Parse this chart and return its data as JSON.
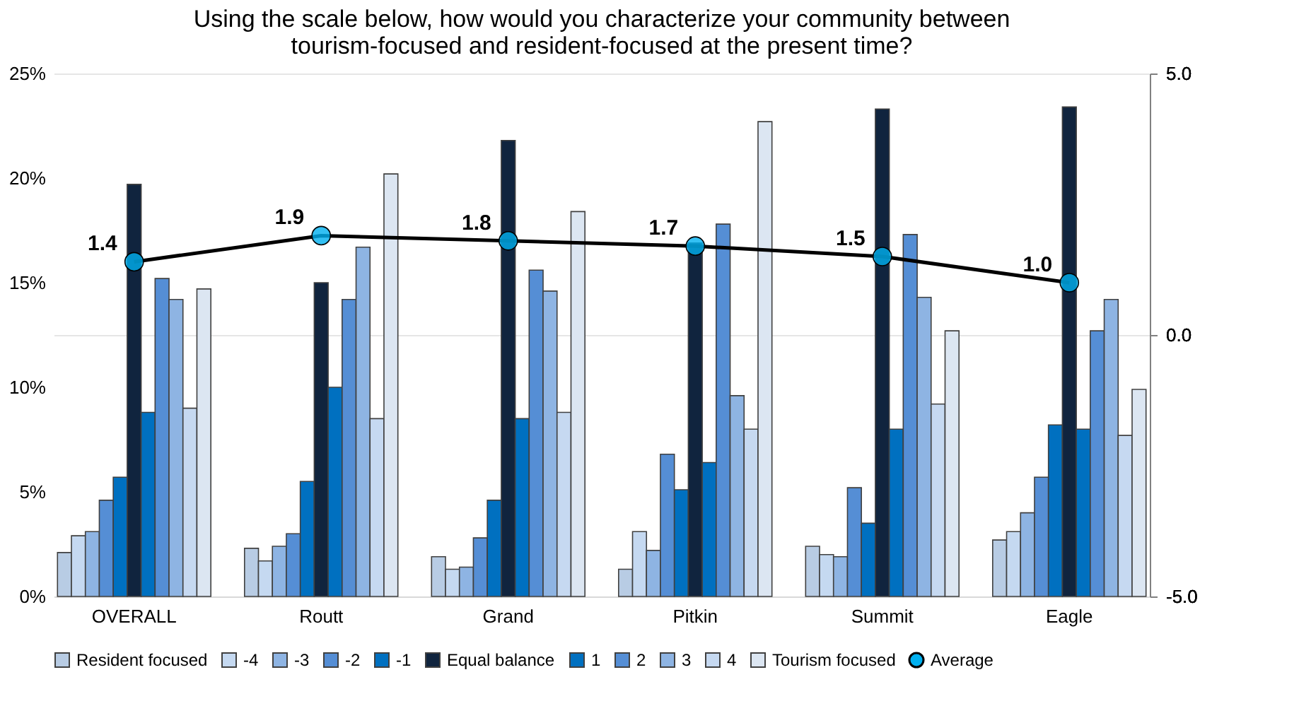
{
  "chart_data": {
    "type": "bar",
    "title": "Using the scale below, how would you characterize your community between\ntourism-focused and resident-focused at the present time?",
    "categories": [
      "OVERALL",
      "Routt",
      "Grand",
      "Pitkin",
      "Summit",
      "Eagle"
    ],
    "series": [
      {
        "name": "Resident focused",
        "color": "#b8cce4",
        "values": [
          2.1,
          2.3,
          1.9,
          1.3,
          2.4,
          2.7
        ]
      },
      {
        "name": "-4",
        "color": "#c5d9f1",
        "values": [
          2.9,
          1.7,
          1.3,
          3.1,
          2.0,
          3.1
        ]
      },
      {
        "name": "-3",
        "color": "#8eb4e3",
        "values": [
          3.1,
          2.4,
          1.4,
          2.2,
          1.9,
          4.0
        ]
      },
      {
        "name": "-2",
        "color": "#558ed5",
        "values": [
          4.6,
          3.0,
          2.8,
          6.8,
          5.2,
          5.7
        ]
      },
      {
        "name": "-1",
        "color": "#0070c0",
        "values": [
          5.7,
          5.5,
          4.6,
          5.1,
          3.5,
          8.2
        ]
      },
      {
        "name": "Equal balance",
        "color": "#10243e",
        "values": [
          19.7,
          15.0,
          21.8,
          16.9,
          23.3,
          23.4
        ]
      },
      {
        "name": "1",
        "color": "#0070c0",
        "values": [
          8.8,
          10.0,
          8.5,
          6.4,
          8.0,
          8.0
        ]
      },
      {
        "name": "2",
        "color": "#558ed5",
        "values": [
          15.2,
          14.2,
          15.6,
          17.8,
          17.3,
          12.7
        ]
      },
      {
        "name": "3",
        "color": "#8eb4e3",
        "values": [
          14.2,
          16.7,
          14.6,
          9.6,
          14.3,
          14.2
        ]
      },
      {
        "name": "4",
        "color": "#c6d9f1",
        "values": [
          9.0,
          8.5,
          8.8,
          8.0,
          9.2,
          7.7
        ]
      },
      {
        "name": "Tourism focused",
        "color": "#dce6f2",
        "values": [
          14.7,
          20.2,
          18.4,
          22.7,
          12.7,
          9.9
        ]
      },
      {
        "name": "Average",
        "type": "line",
        "axis": "y2",
        "color": "#000000",
        "marker": "circle",
        "values": [
          1.4,
          1.9,
          1.8,
          1.7,
          1.5,
          1.0
        ],
        "value_labels": [
          "1.4",
          "1.9",
          "1.8",
          "1.7",
          "1.5",
          "1.0"
        ]
      }
    ],
    "ylim": [
      0,
      25
    ],
    "yticks": [
      {
        "value": 0,
        "label": "0%"
      },
      {
        "value": 5,
        "label": "5%"
      },
      {
        "value": 10,
        "label": "10%"
      },
      {
        "value": 15,
        "label": "15%"
      },
      {
        "value": 20,
        "label": "20%"
      },
      {
        "value": 25,
        "label": "25%"
      }
    ],
    "y2lim": [
      -5,
      5
    ],
    "y2ticks": [
      {
        "value": -5,
        "label": "-5.0"
      },
      {
        "value": 0,
        "label": "0.0"
      },
      {
        "value": 5,
        "label": "5.0"
      }
    ],
    "grid": "y2",
    "legend": "bottom"
  }
}
